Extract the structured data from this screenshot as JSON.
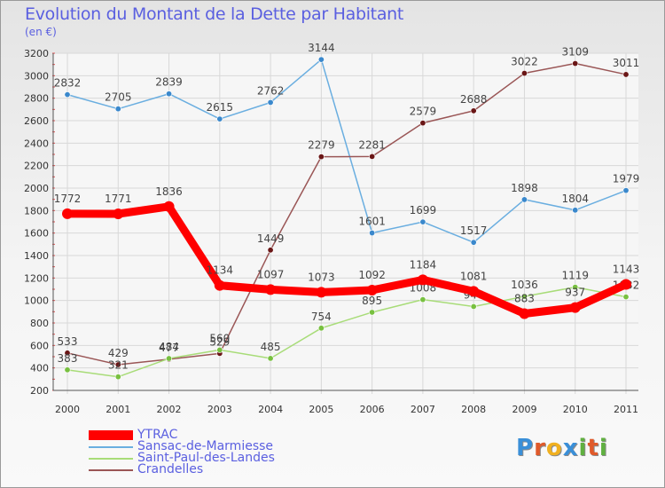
{
  "header": {
    "title": "Evolution du Montant de la Dette par Habitant",
    "subtitle": "(en €)"
  },
  "logo": {
    "text": "Proxiti",
    "letter_colors": [
      "#3a8fd8",
      "#e05a2a",
      "#f0b020",
      "#3a8fd8",
      "#60b040",
      "#e05a2a",
      "#60b040"
    ]
  },
  "chart_data": {
    "type": "line",
    "x": [
      "2000",
      "2001",
      "2002",
      "2003",
      "2004",
      "2005",
      "2006",
      "2007",
      "2008",
      "2009",
      "2010",
      "2011"
    ],
    "ylim": [
      200,
      3200
    ],
    "yticks": [
      200,
      400,
      600,
      800,
      1000,
      1200,
      1400,
      1600,
      1800,
      2000,
      2200,
      2400,
      2600,
      2800,
      3000,
      3200
    ],
    "grid": true,
    "legend_position": "bottom-left",
    "series": [
      {
        "name": "Sansac-de-Marmiesse",
        "color": "#6aaee0",
        "marker": "#3a88cc",
        "values": [
          2832,
          2705,
          2839,
          2615,
          2762,
          3144,
          1601,
          1699,
          1517,
          1898,
          1804,
          1979
        ],
        "labels": [
          "2832",
          "2705",
          "2839",
          "2615",
          "2762",
          "3144",
          "1601",
          "1699",
          "1517",
          "1898",
          "1804",
          "1979"
        ]
      },
      {
        "name": "Crandelles",
        "color": "#9a5656",
        "marker": "#6a1616",
        "values": [
          533,
          429,
          477,
          529,
          1449,
          2279,
          2281,
          2579,
          2688,
          3022,
          3109,
          3011
        ],
        "labels": [
          "533",
          "429",
          "477",
          "529",
          "1449",
          "2279",
          "2281",
          "2579",
          "2688",
          "3022",
          "3109",
          "3011"
        ]
      },
      {
        "name": "Saint-Paul-des-Landes",
        "color": "#a8dc78",
        "marker": "#78c040",
        "values": [
          383,
          321,
          484,
          560,
          485,
          754,
          895,
          1008,
          946,
          1036,
          1119,
          1032
        ],
        "labels": [
          "383",
          "321",
          "484",
          "560",
          "485",
          "754",
          "895",
          "1008",
          "946",
          "1036",
          "1119",
          "1032"
        ]
      },
      {
        "name": "YTRAC",
        "color": "#ff0000",
        "marker": "#ff0000",
        "values": [
          1772,
          1771,
          1836,
          1134,
          1097,
          1073,
          1092,
          1184,
          1081,
          883,
          937,
          1143
        ],
        "labels": [
          "1772",
          "1771",
          "1836",
          "1134",
          "1097",
          "1073",
          "1092",
          "1184",
          "1081",
          "883",
          "937",
          "1143"
        ]
      }
    ]
  },
  "legend": [
    {
      "name": "YTRAC",
      "color": "#ff0000",
      "thickness": 11
    },
    {
      "name": "Sansac-de-Marmiesse",
      "color": "#6aaee0",
      "thickness": 2
    },
    {
      "name": "Saint-Paul-des-Landes",
      "color": "#a8dc78",
      "thickness": 2
    },
    {
      "name": "Crandelles",
      "color": "#9a5656",
      "thickness": 2
    }
  ]
}
